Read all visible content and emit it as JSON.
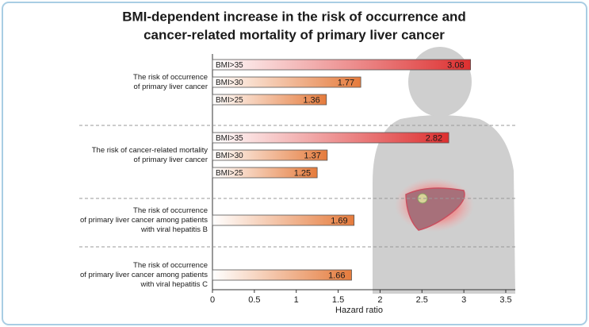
{
  "chart_data": {
    "type": "bar",
    "orientation": "horizontal",
    "title": [
      "BMI-dependent increase in the risk of occurrence and",
      "cancer-related mortality of primary liver cancer"
    ],
    "x_label": "Hazard ratio",
    "xlim": [
      0,
      3.5
    ],
    "xticks": [
      0,
      0.5,
      1,
      1.5,
      2,
      2.5,
      3,
      3.5
    ],
    "groups": [
      {
        "label": [
          "The risk of occurrence",
          "of primary liver cancer"
        ],
        "bars": [
          {
            "category": "BMI>35",
            "value": 3.08,
            "color": "#dd2f2f"
          },
          {
            "category": "BMI>30",
            "value": 1.77,
            "color": "#e57b3c"
          },
          {
            "category": "BMI>25",
            "value": 1.36,
            "color": "#e57b3c"
          }
        ]
      },
      {
        "label": [
          "The risk of cancer-related mortality",
          "of primary liver cancer"
        ],
        "bars": [
          {
            "category": "BMI>35",
            "value": 2.82,
            "color": "#dd2f2f"
          },
          {
            "category": "BMI>30",
            "value": 1.37,
            "color": "#e57b3c"
          },
          {
            "category": "BMI>25",
            "value": 1.25,
            "color": "#e57b3c"
          }
        ]
      },
      {
        "label": [
          "The risk of occurrence",
          "of primary liver cancer among patients",
          "with viral hepatitis B"
        ],
        "bars": [
          {
            "category": null,
            "value": 1.69,
            "color": "#e57b3c"
          }
        ]
      },
      {
        "label": [
          "The risk of occurrence",
          "of primary liver cancer among patients",
          "with viral hepatitis C"
        ],
        "bars": [
          {
            "category": null,
            "value": 1.66,
            "color": "#e57b3c"
          }
        ]
      }
    ]
  }
}
